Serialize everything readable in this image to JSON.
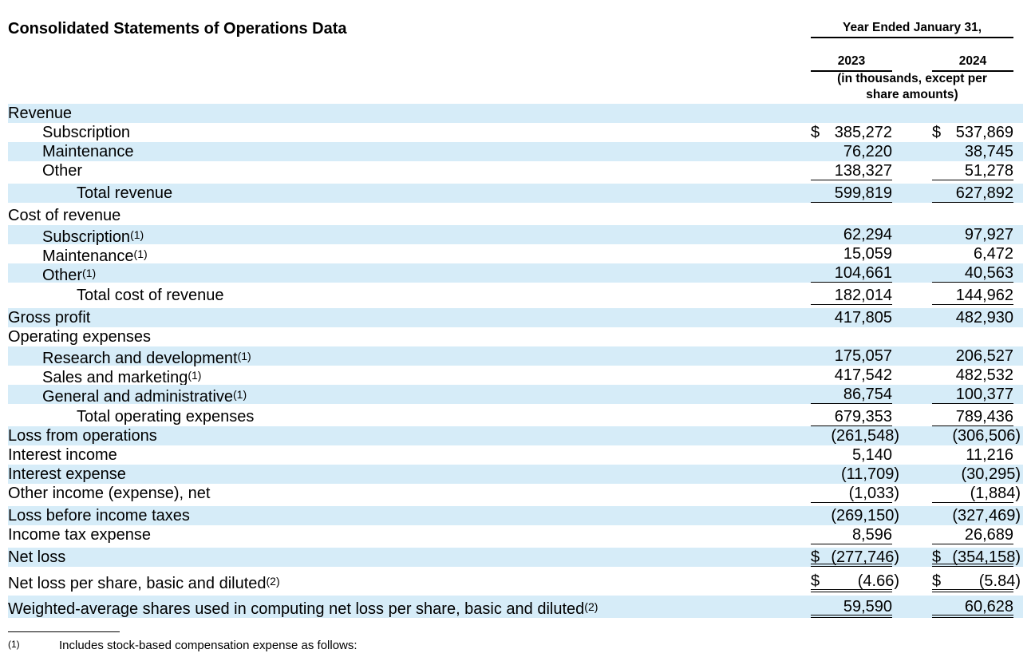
{
  "title": "Consolidated Statements of Operations Data",
  "header": {
    "period": "Year Ended January 31,",
    "year1": "2023",
    "year2": "2024",
    "unit_line1": "(in thousands, except per",
    "unit_line2": "share amounts)"
  },
  "rows": {
    "revenue": {
      "label": "Revenue"
    },
    "subscription": {
      "label": "Subscription",
      "v1": "385,272",
      "v2": "537,869",
      "d1": "$",
      "d2": "$"
    },
    "maintenance": {
      "label": "Maintenance",
      "v1": "76,220",
      "v2": "38,745"
    },
    "other": {
      "label": "Other",
      "v1": "138,327",
      "v2": "51,278"
    },
    "total_revenue": {
      "label": "Total revenue",
      "v1": "599,819",
      "v2": "627,892"
    },
    "cost_of_revenue": {
      "label": "Cost of revenue"
    },
    "cor_subscription": {
      "label": "Subscription",
      "fn": "(1)",
      "v1": "62,294",
      "v2": "97,927"
    },
    "cor_maintenance": {
      "label": "Maintenance",
      "fn": "(1)",
      "v1": "15,059",
      "v2": "6,472"
    },
    "cor_other": {
      "label": "Other",
      "fn": "(1)",
      "v1": "104,661",
      "v2": "40,563"
    },
    "total_cost_of_revenue": {
      "label": "Total cost of revenue",
      "v1": "182,014",
      "v2": "144,962"
    },
    "gross_profit": {
      "label": "Gross profit",
      "v1": "417,805",
      "v2": "482,930"
    },
    "operating_expenses": {
      "label": "Operating expenses"
    },
    "research_development": {
      "label": "Research and development",
      "fn": "(1)",
      "v1": "175,057",
      "v2": "206,527"
    },
    "sales_marketing": {
      "label": "Sales and marketing",
      "fn": "(1)",
      "v1": "417,542",
      "v2": "482,532"
    },
    "general_admin": {
      "label": "General and administrative",
      "fn": "(1)",
      "v1": "86,754",
      "v2": "100,377"
    },
    "total_operating_expenses": {
      "label": "Total operating expenses",
      "v1": "679,353",
      "v2": "789,436"
    },
    "loss_from_operations": {
      "label": "Loss from operations",
      "v1": "(261,548)",
      "v2": "(306,506)"
    },
    "interest_income": {
      "label": "Interest income",
      "v1": "5,140",
      "v2": "11,216"
    },
    "interest_expense": {
      "label": "Interest expense",
      "v1": "(11,709)",
      "v2": "(30,295)"
    },
    "other_income": {
      "label": "Other income (expense), net",
      "v1": "(1,033)",
      "v2": "(1,884)"
    },
    "loss_before_taxes": {
      "label": "Loss before income taxes",
      "v1": "(269,150)",
      "v2": "(327,469)"
    },
    "income_tax": {
      "label": "Income tax expense",
      "v1": "8,596",
      "v2": "26,689"
    },
    "net_loss": {
      "label": "Net loss",
      "v1": "(277,746)",
      "v2": "(354,158)",
      "d1": "$",
      "d2": "$"
    },
    "net_loss_per_share": {
      "label": "Net loss per share, basic and diluted",
      "fn": "(2)",
      "v1": "(4.66)",
      "v2": "(5.84)",
      "d1": "$",
      "d2": "$"
    },
    "weighted_shares": {
      "label": "Weighted-average shares used in computing net loss per share, basic and diluted",
      "fn": "(2)",
      "v1": "59,590",
      "v2": "60,628"
    }
  },
  "footnote": {
    "mark": "(1)",
    "text": "Includes stock-based compensation expense as follows:"
  }
}
